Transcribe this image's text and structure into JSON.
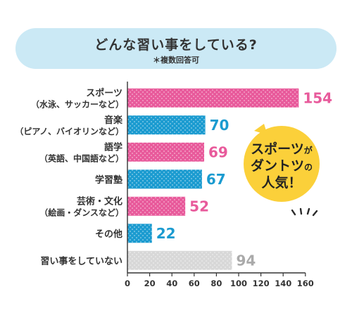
{
  "title": "どんな習い事をしている?",
  "note": "＊複数回答可",
  "callout": {
    "line1": "スポーツ",
    "line1b": "が",
    "line2": "ダントツ",
    "line2b": "の",
    "line3": "人気！"
  },
  "colors": {
    "pink": "#e85a9b",
    "blue": "#1b9bd0",
    "gray": "#d8d8d8",
    "bubble": "#fbd03a",
    "title_bg": "#cbe9f5"
  },
  "chart_data": {
    "type": "bar",
    "orientation": "horizontal",
    "categories": [
      {
        "label": "スポーツ",
        "sub": "（水泳、サッカーなど）",
        "value": 154,
        "color": "pink"
      },
      {
        "label": "音楽",
        "sub": "（ピアノ、バイオリンなど）",
        "value": 70,
        "color": "blue"
      },
      {
        "label": "語学",
        "sub": "（英語、中国語など）",
        "value": 69,
        "color": "pink"
      },
      {
        "label": "学習塾",
        "sub": "",
        "value": 67,
        "color": "blue"
      },
      {
        "label": "芸術・文化",
        "sub": "（絵画・ダンスなど）",
        "value": 52,
        "color": "pink"
      },
      {
        "label": "その他",
        "sub": "",
        "value": 22,
        "color": "blue"
      },
      {
        "label": "習い事をしていない",
        "sub": "",
        "value": 94,
        "color": "gray"
      }
    ],
    "xlim": [
      0,
      160
    ],
    "xticks": [
      0,
      20,
      40,
      60,
      80,
      100,
      120,
      140,
      160
    ],
    "grid": false
  }
}
